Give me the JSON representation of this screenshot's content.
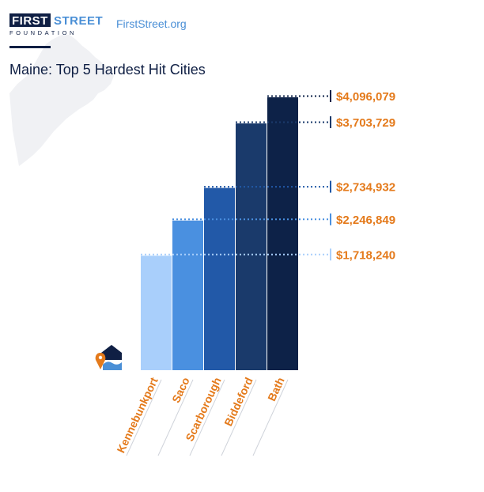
{
  "brand": {
    "logo_word_1": "FIRST",
    "logo_word_2": "STREET",
    "logo_subline": "FOUNDATION",
    "site_link": "FirstStreet.org",
    "navy": "#0f1f44",
    "blue": "#4a8fd6",
    "accent_orange": "#e47a1b"
  },
  "icons": {
    "state_background": "maine-state-silhouette",
    "flood_home": "flooded-house-pin-icon"
  },
  "chart_data": {
    "type": "bar",
    "title": "Maine: Top 5 Hardest Hit Cities",
    "xlabel": "",
    "ylabel": "",
    "ylim": [
      0,
      4096079
    ],
    "categories": [
      "Kennebunkport",
      "Saco",
      "Scarborough",
      "Biddeford",
      "Bath"
    ],
    "values": [
      1718240,
      2246849,
      2734932,
      3703729,
      4096079
    ],
    "value_labels": [
      "$1,718,240",
      "$2,246,849",
      "$2,734,932",
      "$3,703,729",
      "$4,096,079"
    ],
    "bar_colors": [
      "#a9cffb",
      "#4a90e0",
      "#2259a8",
      "#1a3a6b",
      "#0d2248"
    ],
    "label_color": "#e47a1b",
    "grid": false,
    "legend": "none"
  }
}
